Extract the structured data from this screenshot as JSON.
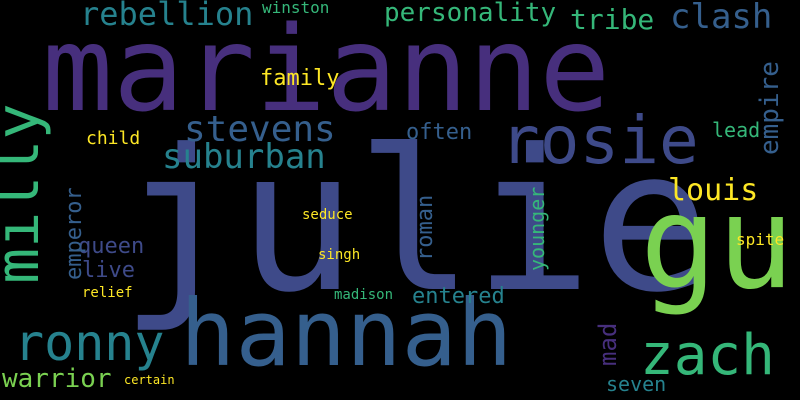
{
  "colors": {
    "background": "#000000",
    "purple": "#472f7d",
    "indigo": "#3e4a89",
    "blue": "#355f8d",
    "teal": "#26828e",
    "green": "#35b779",
    "lime": "#7ad151",
    "yellow": "#fde725"
  },
  "words": {
    "marianne": "marianne",
    "julie": "julie",
    "gu": "gu",
    "hannah": "hannah",
    "rosie": "rosie",
    "zach": "zach",
    "milly": "milly",
    "ronny": "ronny",
    "stevens": "stevens",
    "suburban": "suburban",
    "rebellion": "rebellion",
    "personality": "personality",
    "tribe": "tribe",
    "clash": "clash",
    "empire": "empire",
    "emperor": "emperor",
    "louis": "louis",
    "queen": "queen",
    "warrior": "warrior",
    "family": "family",
    "often": "often",
    "lead": "lead",
    "roman": "roman",
    "younger": "younger",
    "mad": "mad",
    "entered": "entered",
    "seven": "seven",
    "live": "live",
    "child": "child",
    "winston": "winston",
    "spite": "spite",
    "relief": "relief",
    "seduce": "seduce",
    "singh": "singh",
    "madison": "madison",
    "certain": "certain"
  }
}
